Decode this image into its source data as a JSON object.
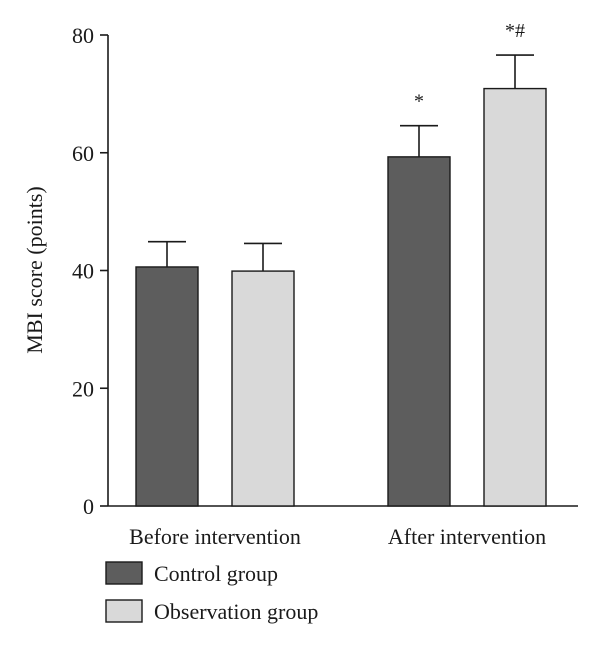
{
  "colors": {
    "control": "#5d5d5d",
    "observation": "#d9d9d9",
    "axis": "#1a1a1a"
  },
  "chart_data": {
    "type": "bar",
    "title": "",
    "xlabel": "",
    "ylabel": "MBI score (points)",
    "ylim": [
      0,
      80
    ],
    "yticks": [
      0,
      20,
      40,
      60,
      80
    ],
    "categories": [
      "Before intervention",
      "After intervention"
    ],
    "series": [
      {
        "name": "Control group",
        "color": "#5d5d5d",
        "values": [
          40.6,
          59.3
        ],
        "errors": [
          4.3,
          5.3
        ],
        "annotations": [
          "",
          "*"
        ]
      },
      {
        "name": "Observation group",
        "color": "#d9d9d9",
        "values": [
          39.9,
          70.9
        ],
        "errors": [
          4.7,
          5.7
        ],
        "annotations": [
          "",
          "*#"
        ]
      }
    ],
    "legend_position": "bottom-left",
    "grid": false
  }
}
